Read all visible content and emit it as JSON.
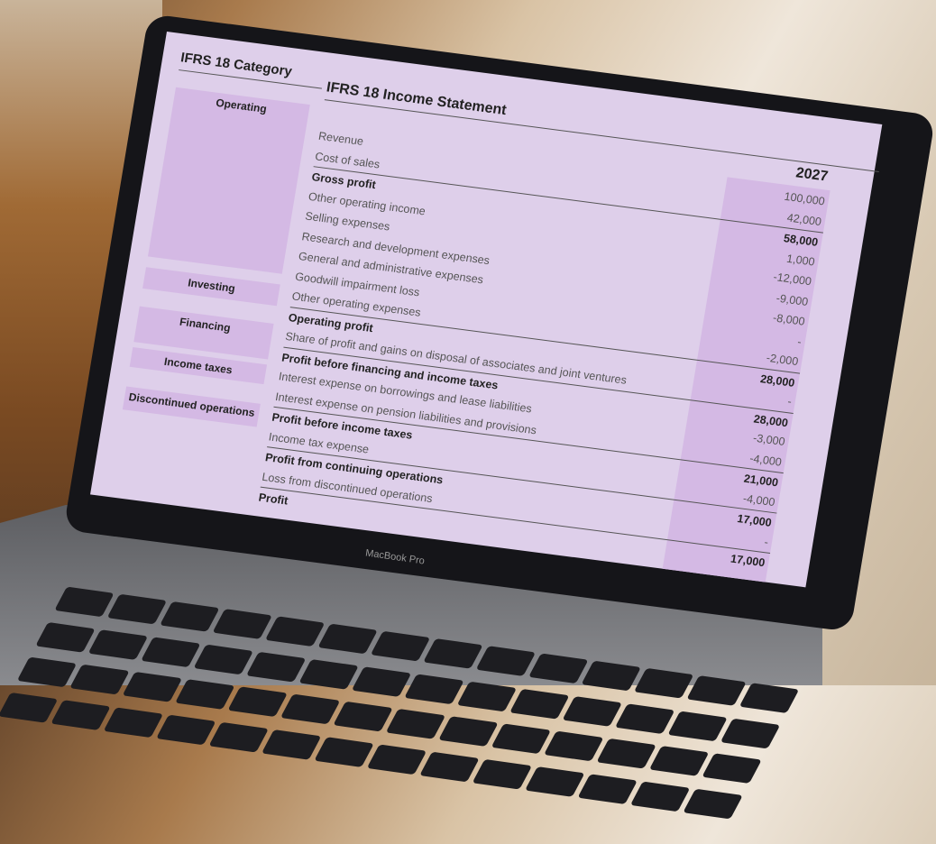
{
  "category_column": {
    "title": "IFRS 18 Category",
    "categories": [
      "Operating",
      "Investing",
      "Financing",
      "Income taxes",
      "Discontinued operations"
    ]
  },
  "statement": {
    "title": "IFRS 18 Income Statement",
    "year": "2027",
    "rows": [
      {
        "label": "Revenue",
        "value": "100,000",
        "bold": false
      },
      {
        "label": "Cost of sales",
        "value": "42,000",
        "bold": false
      },
      {
        "label": "Gross profit",
        "value": "58,000",
        "bold": true
      },
      {
        "label": "Other operating income",
        "value": "1,000",
        "bold": false
      },
      {
        "label": "Selling expenses",
        "value": "-12,000",
        "bold": false
      },
      {
        "label": "Research and development expenses",
        "value": "-9,000",
        "bold": false
      },
      {
        "label": "General and administrative expenses",
        "value": "-8,000",
        "bold": false
      },
      {
        "label": "Goodwill impairment loss",
        "value": "-",
        "bold": false
      },
      {
        "label": "Other operating expenses",
        "value": "-2,000",
        "bold": false
      },
      {
        "label": "Operating profit",
        "value": "28,000",
        "bold": true
      },
      {
        "label": "Share of profit and gains on disposal of associates and joint ventures",
        "value": "-",
        "bold": false
      },
      {
        "label": "Profit before financing and income taxes",
        "value": "28,000",
        "bold": true
      },
      {
        "label": "Interest expense on borrowings and lease liabilities",
        "value": "-3,000",
        "bold": false
      },
      {
        "label": "Interest expense on pension liabilities and provisions",
        "value": "-4,000",
        "bold": false
      },
      {
        "label": "Profit before income taxes",
        "value": "21,000",
        "bold": true
      },
      {
        "label": "Income tax expense",
        "value": "-4,000",
        "bold": false
      },
      {
        "label": "Profit from continuing operations",
        "value": "17,000",
        "bold": true
      },
      {
        "label": "Loss from discontinued operations",
        "value": "-",
        "bold": false
      },
      {
        "label": "Profit",
        "value": "17,000",
        "bold": true
      }
    ]
  },
  "device": {
    "brand": "MacBook Pro"
  },
  "colors": {
    "screen_bg": "#decfea",
    "highlight": "#d4b9e4"
  }
}
